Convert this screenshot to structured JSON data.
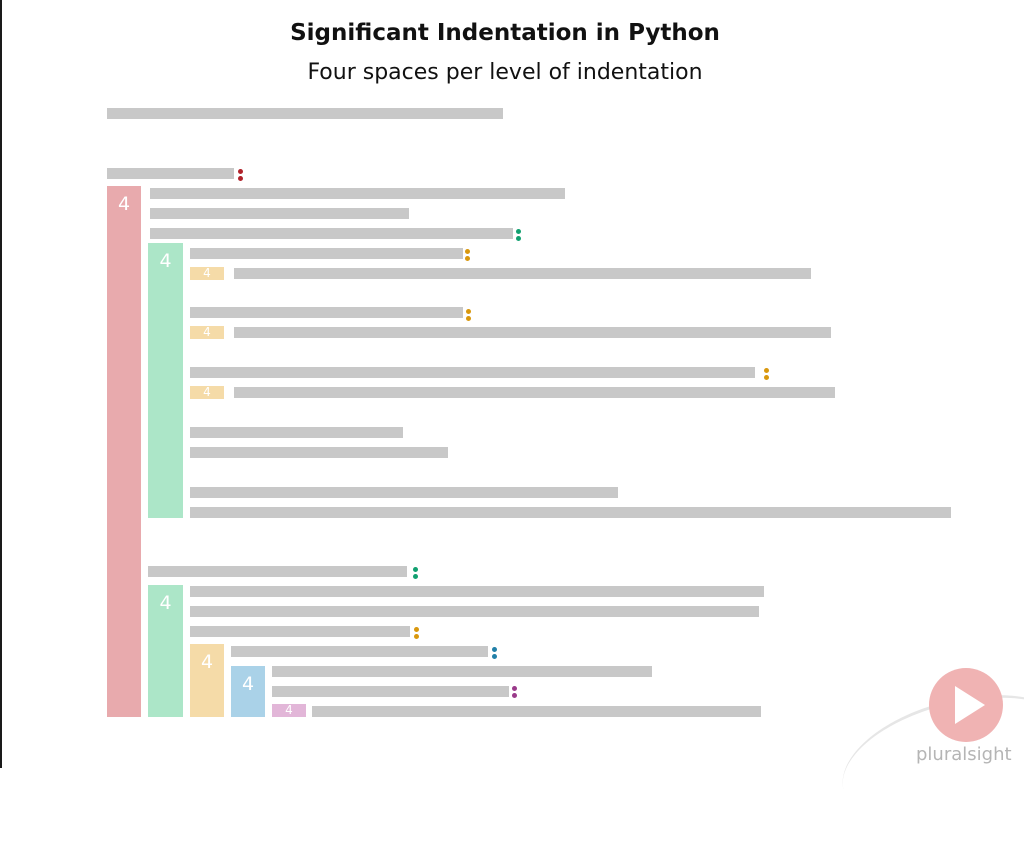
{
  "title": "Significant Indentation in Python",
  "subtitle": "Four spaces per level of indentation",
  "indent_label": "4",
  "brand": "pluralsight",
  "colors": {
    "line": "#c8c8c8",
    "level1": "#e8aaad",
    "level2": "#ace6c8",
    "level3": "#f5dba8",
    "level4": "#aad2e8",
    "level5": "#e2b6d8",
    "colon_red": "#b0222a",
    "colon_green": "#12a070",
    "colon_orange": "#d9980e",
    "colon_blue": "#2280a8",
    "colon_purple": "#9a3a8a"
  }
}
